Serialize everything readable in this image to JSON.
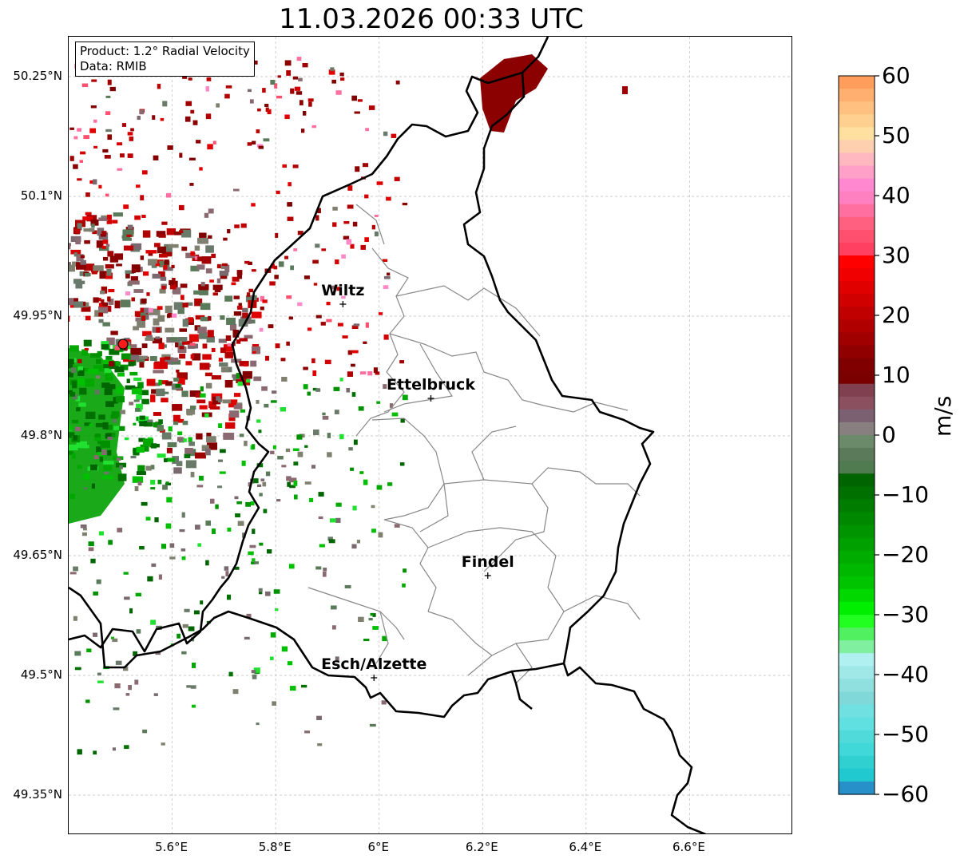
{
  "title": "11.03.2026 00:33 UTC",
  "info": {
    "product": "Product: 1.2° Radial Velocity",
    "data": "Data: RMIB"
  },
  "map": {
    "lon_range": [
      5.4,
      6.8
    ],
    "lat_range": [
      49.3,
      50.3
    ],
    "radar_site": {
      "lon": 5.505,
      "lat": 49.915
    },
    "x_ticks": [
      "5.6°E",
      "5.8°E",
      "6°E",
      "6.2°E",
      "6.4°E",
      "6.6°E"
    ],
    "y_ticks": [
      "50.25°N",
      "50.1°N",
      "49.95°N",
      "49.8°N",
      "49.65°N",
      "49.5°N",
      "49.35°N"
    ],
    "cities": [
      {
        "name": "Wiltz",
        "lon": 5.93,
        "lat": 49.965
      },
      {
        "name": "Ettelbruck",
        "lon": 6.1,
        "lat": 49.847
      },
      {
        "name": "Findel",
        "lon": 6.21,
        "lat": 49.625
      },
      {
        "name": "Esch/Alzette",
        "lon": 5.99,
        "lat": 49.497
      }
    ]
  },
  "colorbar": {
    "label": "m/s",
    "min": -60,
    "max": 60,
    "ticks": [
      "60",
      "50",
      "40",
      "30",
      "20",
      "10",
      "0",
      "−10",
      "−20",
      "−30",
      "−40",
      "−50",
      "−60"
    ],
    "colors_top_to_bottom": [
      "#ff9e5c",
      "#ffb070",
      "#ffc080",
      "#ffd090",
      "#ffe0a0",
      "#ffd0b0",
      "#ffb8c0",
      "#ffa0c8",
      "#ff88d0",
      "#ff80c0",
      "#ff70a0",
      "#ff6080",
      "#ff5070",
      "#ff4060",
      "#ff0000",
      "#f00000",
      "#e00000",
      "#d00000",
      "#c00000",
      "#b00000",
      "#a00000",
      "#900000",
      "#800000",
      "#7a0000",
      "#804050",
      "#8a5060",
      "#7a6070",
      "#888080",
      "#6a8a6a",
      "#5a7a5a",
      "#507a50",
      "#006400",
      "#007000",
      "#007c00",
      "#008800",
      "#009400",
      "#00a000",
      "#00ac00",
      "#00b800",
      "#00c400",
      "#00d800",
      "#00ee00",
      "#20ff20",
      "#50f060",
      "#80f0a0",
      "#b0f0f0",
      "#a0e8e8",
      "#90e0e0",
      "#80d8d8",
      "#70e0e0",
      "#60e0e0",
      "#50dada",
      "#40d8d8",
      "#30d0d0",
      "#20c8d0",
      "#2890c8"
    ]
  }
}
